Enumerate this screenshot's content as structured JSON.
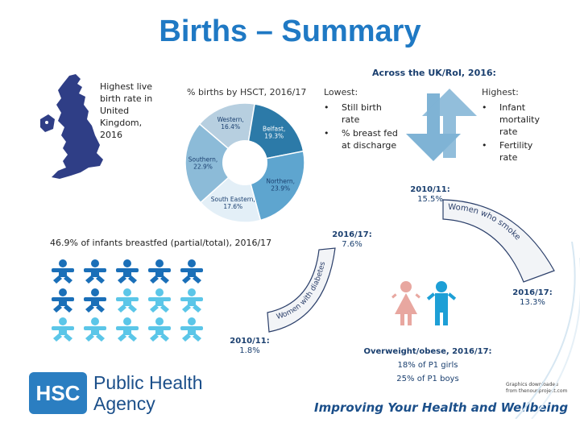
{
  "title": "Births – Summary",
  "uk_note": "Highest live birth rate in United Kingdom, 2016",
  "donut": {
    "title": "% births by HSCT, 2016/17",
    "colors": {
      "western": "#b7cfe0",
      "belfast": "#2c7aa8",
      "northern": "#5ea5cf",
      "south_eastern": "#e3eff7",
      "southern": "#8cbbd8"
    },
    "segments": [
      {
        "name": "Western,",
        "value_label": "16.4%",
        "value": 16.4
      },
      {
        "name": "Belfast,",
        "value_label": "19.3%",
        "value": 19.3
      },
      {
        "name": "Northern,",
        "value_label": "23.9%",
        "value": 23.9
      },
      {
        "name": "South Eastern,",
        "value_label": "17.6%",
        "value": 17.6
      },
      {
        "name": "Southern,",
        "value_label": "22.9%",
        "value": 22.9
      }
    ]
  },
  "comparison": {
    "heading": "Across the UK/RoI, 2016:",
    "lowest_label": "Lowest:",
    "lowest_items": [
      "Still birth rate",
      "% breast fed at discharge"
    ],
    "highest_label": "Highest:",
    "highest_items": [
      "Infant mortality rate",
      "Fertility rate"
    ],
    "arrow_color": "#7fb3d5"
  },
  "breastfed": {
    "label": "46.9% of infants breastfed (partial/total), 2016/17",
    "total": 15,
    "filled": 7,
    "filled_color": "#1a6fb8",
    "empty_color": "#5bc6e8"
  },
  "smoke": {
    "arc_text": "Women who smoke",
    "start_label": "2010/11:",
    "start_value": "15.5%",
    "end_label": "2016/17:",
    "end_value": "13.3%"
  },
  "diabetes": {
    "arc_text": "Women with diabetes",
    "start_label": "2010/11:",
    "start_value": "1.8%",
    "end_label": "2016/17:",
    "end_value": "7.6%"
  },
  "overweight": {
    "heading": "Overweight/obese, 2016/17:",
    "line1": "18% of P1 girls",
    "line2": "25% of P1 boys",
    "girl_color": "#e8a7a0",
    "boy_color": "#1d9fd6"
  },
  "credit": "Graphics downloaded from thenounproject.com",
  "footer": {
    "logo": "HSC",
    "org_line1": "Public Health",
    "org_line2": "Agency",
    "tagline": "Improving Your Health and Wellbeing"
  }
}
